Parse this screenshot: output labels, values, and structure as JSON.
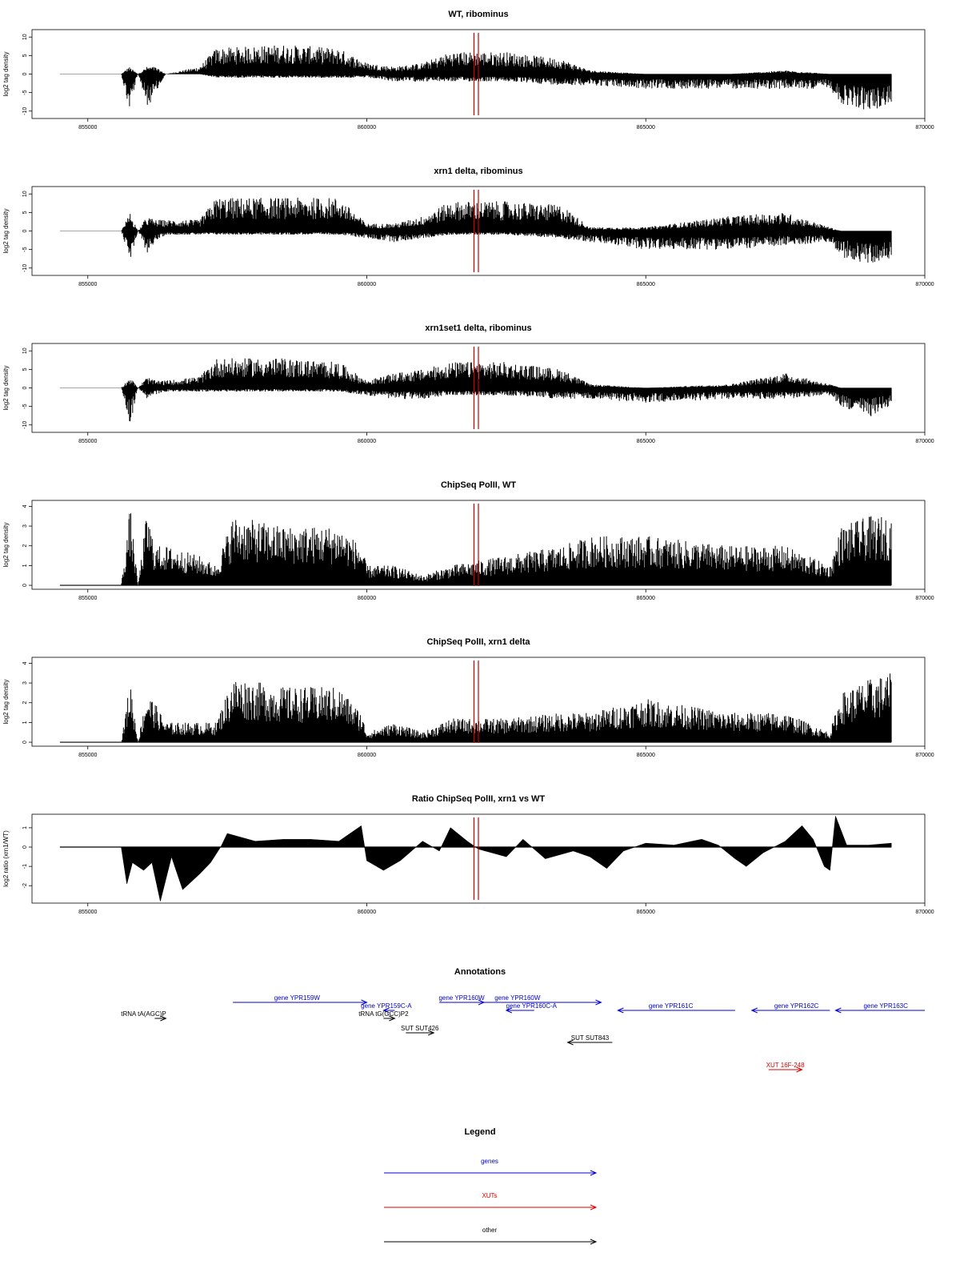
{
  "page": {
    "background": "#ffffff"
  },
  "colors": {
    "signal": "#000000",
    "marker": "#cc0000",
    "gene": "#0000cc",
    "xut": "#dd0000",
    "other": "#000000"
  },
  "x_ticks": [
    "855000",
    "860000",
    "865000",
    "870000"
  ],
  "marker_lines_x": [
    861920,
    862000
  ],
  "chart_data": [
    {
      "type": "bar",
      "title": "WT, ribominus",
      "ylabel": "log2 tag density",
      "xlim": [
        854000,
        870000
      ],
      "ylim": [
        -12,
        12
      ],
      "y_ticks": [
        "10",
        "5",
        "0",
        "-5",
        "-10"
      ],
      "y_tick_values": [
        10,
        5,
        0,
        -5,
        -10
      ],
      "baseline_grey": true,
      "profile": [
        [
          855000,
          0,
          0
        ],
        [
          855600,
          0,
          0
        ],
        [
          855740,
          2,
          -10
        ],
        [
          855900,
          0,
          0
        ],
        [
          856060,
          2,
          -9
        ],
        [
          856200,
          2,
          -6
        ],
        [
          856400,
          0,
          0
        ],
        [
          857000,
          2,
          0
        ],
        [
          857300,
          7,
          -1
        ],
        [
          858500,
          8,
          -1
        ],
        [
          859500,
          7,
          -1
        ],
        [
          860000,
          3,
          -1
        ],
        [
          860500,
          2,
          -2
        ],
        [
          861000,
          3,
          -2
        ],
        [
          861500,
          6,
          -2
        ],
        [
          862500,
          6,
          -2
        ],
        [
          863500,
          4,
          -3
        ],
        [
          864000,
          1,
          -3
        ],
        [
          865000,
          0,
          -4
        ],
        [
          866500,
          0,
          -4
        ],
        [
          867500,
          1,
          -4
        ],
        [
          868300,
          0,
          -4
        ],
        [
          868500,
          0,
          -8
        ],
        [
          869000,
          0,
          -10
        ],
        [
          869400,
          0,
          -8
        ]
      ]
    },
    {
      "type": "bar",
      "title": "xrn1 delta, ribominus",
      "ylabel": "log2 tag density",
      "xlim": [
        854000,
        870000
      ],
      "ylim": [
        -12,
        12
      ],
      "y_ticks": [
        "10",
        "5",
        "0",
        "-5",
        "-10"
      ],
      "y_tick_values": [
        10,
        5,
        0,
        -5,
        -10
      ],
      "baseline_grey": true,
      "profile": [
        [
          855000,
          0,
          0
        ],
        [
          855600,
          0,
          0
        ],
        [
          855760,
          5,
          -8
        ],
        [
          855900,
          0,
          0
        ],
        [
          856060,
          4,
          -6
        ],
        [
          856200,
          3,
          -3
        ],
        [
          856400,
          3,
          -1
        ],
        [
          857000,
          3,
          -1
        ],
        [
          857300,
          9,
          -1
        ],
        [
          858500,
          9,
          -1
        ],
        [
          859500,
          9,
          -1
        ],
        [
          860000,
          2,
          -2
        ],
        [
          860500,
          2,
          -3
        ],
        [
          861000,
          4,
          -2
        ],
        [
          861500,
          8,
          -1
        ],
        [
          862500,
          8,
          -1
        ],
        [
          863500,
          7,
          -2
        ],
        [
          864000,
          1,
          -3
        ],
        [
          865000,
          1,
          -5
        ],
        [
          866500,
          4,
          -5
        ],
        [
          867500,
          5,
          -4
        ],
        [
          868300,
          1,
          -3
        ],
        [
          868500,
          0,
          -7
        ],
        [
          869000,
          0,
          -9
        ],
        [
          869400,
          0,
          -8
        ]
      ]
    },
    {
      "type": "bar",
      "title": "xrn1set1 delta, ribominus",
      "ylabel": "log2 tag density",
      "xlim": [
        854000,
        870000
      ],
      "ylim": [
        -12,
        12
      ],
      "y_ticks": [
        "10",
        "5",
        "0",
        "-5",
        "-10"
      ],
      "y_tick_values": [
        10,
        5,
        0,
        -5,
        -10
      ],
      "baseline_grey": true,
      "profile": [
        [
          855000,
          0,
          0
        ],
        [
          855600,
          0,
          0
        ],
        [
          855760,
          3,
          -10
        ],
        [
          855900,
          0,
          0
        ],
        [
          856060,
          3,
          -3
        ],
        [
          856200,
          2,
          -2
        ],
        [
          856400,
          2,
          -1
        ],
        [
          857000,
          3,
          -1
        ],
        [
          857300,
          8,
          -1
        ],
        [
          858500,
          8,
          -1
        ],
        [
          859500,
          7,
          -1
        ],
        [
          860000,
          2,
          -2
        ],
        [
          860500,
          4,
          -3
        ],
        [
          861000,
          5,
          -3
        ],
        [
          861500,
          7,
          -2
        ],
        [
          862500,
          7,
          -2
        ],
        [
          863500,
          5,
          -3
        ],
        [
          864000,
          1,
          -3
        ],
        [
          865000,
          0,
          -4
        ],
        [
          866500,
          1,
          -3
        ],
        [
          867500,
          4,
          -3
        ],
        [
          868300,
          1,
          -2
        ],
        [
          868500,
          0,
          -5
        ],
        [
          869000,
          0,
          -8
        ],
        [
          869400,
          0,
          -5
        ]
      ]
    },
    {
      "type": "bar",
      "title": "ChipSeq PolII, WT",
      "ylabel": "log2 tag density",
      "xlim": [
        854000,
        870000
      ],
      "ylim": [
        -0.2,
        4.3
      ],
      "y_ticks": [
        "0",
        "1",
        "2",
        "3",
        "4"
      ],
      "y_tick_values": [
        0,
        1,
        2,
        3,
        4
      ],
      "baseline_grey": false,
      "profile": [
        [
          855000,
          0,
          0
        ],
        [
          855600,
          0,
          0
        ],
        [
          855760,
          4,
          0
        ],
        [
          855900,
          0,
          0
        ],
        [
          856060,
          3.8,
          0
        ],
        [
          856200,
          2,
          0
        ],
        [
          856400,
          2,
          0
        ],
        [
          857000,
          1.5,
          0
        ],
        [
          857300,
          1,
          0
        ],
        [
          857600,
          3.5,
          0
        ],
        [
          858500,
          3,
          0
        ],
        [
          859500,
          3,
          0
        ],
        [
          859900,
          2,
          0
        ],
        [
          860000,
          1,
          0
        ],
        [
          860500,
          1,
          0
        ],
        [
          861000,
          0.5,
          0
        ],
        [
          861500,
          1,
          0
        ],
        [
          862500,
          1.5,
          0
        ],
        [
          863500,
          2,
          0
        ],
        [
          864000,
          2.5,
          0
        ],
        [
          865000,
          2.5,
          0
        ],
        [
          866500,
          2,
          0
        ],
        [
          867500,
          2,
          0
        ],
        [
          868300,
          1,
          0
        ],
        [
          868500,
          3,
          0
        ],
        [
          869000,
          3.5,
          0
        ],
        [
          869400,
          3.5,
          0
        ]
      ]
    },
    {
      "type": "bar",
      "title": "ChipSeq PolII, xrn1 delta",
      "ylabel": "log2 tag density",
      "xlim": [
        854000,
        870000
      ],
      "ylim": [
        -0.2,
        4.3
      ],
      "y_ticks": [
        "0",
        "1",
        "2",
        "3",
        "4"
      ],
      "y_tick_values": [
        0,
        1,
        2,
        3,
        4
      ],
      "baseline_grey": false,
      "profile": [
        [
          855000,
          0,
          0
        ],
        [
          855600,
          0,
          0
        ],
        [
          855760,
          3.2,
          0
        ],
        [
          855900,
          0,
          0
        ],
        [
          856060,
          2.6,
          0
        ],
        [
          856200,
          2,
          0
        ],
        [
          856400,
          1,
          0
        ],
        [
          857000,
          1,
          0
        ],
        [
          857300,
          1,
          0
        ],
        [
          857600,
          3.3,
          0
        ],
        [
          858500,
          2.8,
          0
        ],
        [
          859500,
          2.8,
          0
        ],
        [
          859900,
          1.5,
          0
        ],
        [
          860000,
          0.5,
          0
        ],
        [
          860500,
          1,
          0
        ],
        [
          861000,
          0.5,
          0
        ],
        [
          861500,
          1.2,
          0
        ],
        [
          862500,
          1.2,
          0
        ],
        [
          863500,
          1.5,
          0
        ],
        [
          864000,
          1.5,
          0
        ],
        [
          865000,
          2.2,
          0
        ],
        [
          866500,
          1.5,
          0
        ],
        [
          867500,
          1.5,
          0
        ],
        [
          868300,
          0.5,
          0
        ],
        [
          868500,
          2.5,
          0
        ],
        [
          869000,
          3.2,
          0
        ],
        [
          869400,
          3.5,
          0
        ]
      ]
    },
    {
      "type": "area",
      "title": "Ratio ChipSeq PolII, xrn1 vs WT",
      "ylabel": "log2 ratio (xrn1/WT)",
      "xlim": [
        854000,
        870000
      ],
      "ylim": [
        -2.9,
        1.7
      ],
      "y_ticks": [
        "1",
        "0",
        "-1",
        "-2"
      ],
      "y_tick_values": [
        1,
        0,
        -1,
        -2
      ],
      "baseline_grey": false,
      "points": [
        [
          854500,
          0
        ],
        [
          855600,
          0
        ],
        [
          855700,
          -1.9
        ],
        [
          855800,
          -0.8
        ],
        [
          856000,
          -1.2
        ],
        [
          856150,
          -0.8
        ],
        [
          856300,
          -2.8
        ],
        [
          856500,
          -0.5
        ],
        [
          856700,
          -2.2
        ],
        [
          857000,
          -1.4
        ],
        [
          857200,
          -0.8
        ],
        [
          857400,
          0.1
        ],
        [
          857500,
          0.7
        ],
        [
          858000,
          0.3
        ],
        [
          858500,
          0.4
        ],
        [
          859000,
          0.4
        ],
        [
          859500,
          0.3
        ],
        [
          859900,
          1.1
        ],
        [
          860000,
          -0.7
        ],
        [
          860300,
          -1.2
        ],
        [
          860600,
          -0.7
        ],
        [
          861000,
          0.3
        ],
        [
          861300,
          -0.2
        ],
        [
          861500,
          1.0
        ],
        [
          861800,
          0.3
        ],
        [
          862000,
          -0.1
        ],
        [
          862500,
          -0.5
        ],
        [
          862800,
          0.4
        ],
        [
          863200,
          -0.6
        ],
        [
          863700,
          -0.2
        ],
        [
          864000,
          -0.5
        ],
        [
          864300,
          -1.1
        ],
        [
          864600,
          -0.2
        ],
        [
          865000,
          0.2
        ],
        [
          865500,
          0.1
        ],
        [
          866000,
          0.4
        ],
        [
          866300,
          0.1
        ],
        [
          866600,
          -0.6
        ],
        [
          866800,
          -1.0
        ],
        [
          867100,
          -0.3
        ],
        [
          867500,
          0.3
        ],
        [
          867800,
          1.1
        ],
        [
          868000,
          0.4
        ],
        [
          868200,
          -1.0
        ],
        [
          868300,
          -1.2
        ],
        [
          868400,
          1.6
        ],
        [
          868600,
          0.1
        ],
        [
          869000,
          0.1
        ],
        [
          869400,
          0.2
        ]
      ]
    }
  ],
  "annotations": {
    "title": "Annotations",
    "items": [
      {
        "label": "gene YPR159W",
        "type": "gene",
        "x1": 857600,
        "x2": 860000,
        "row": 0,
        "label_x": 858750
      },
      {
        "label": "gene YPR159C-A",
        "type": "gene",
        "x1": 860500,
        "x2": 860300,
        "row": 1,
        "label_x": 860350
      },
      {
        "label": "gene YPR160W",
        "type": "gene",
        "x1": 861300,
        "x2": 862100,
        "row": 0,
        "label_x": 861700
      },
      {
        "label": "gene YPR160W",
        "type": "gene",
        "x1": 862100,
        "x2": 864200,
        "row": 0,
        "label_x": 862700
      },
      {
        "label": "gene YPR160C-A",
        "type": "gene",
        "x1": 863000,
        "x2": 862500,
        "row": 1,
        "label_x": 862950
      },
      {
        "label": "gene YPR161C",
        "type": "gene",
        "x1": 866600,
        "x2": 864500,
        "row": 1,
        "label_x": 865450
      },
      {
        "label": "gene YPR162C",
        "type": "gene",
        "x1": 868300,
        "x2": 866900,
        "row": 1,
        "label_x": 867700
      },
      {
        "label": "gene YPR163C",
        "type": "gene",
        "x1": 870000,
        "x2": 868400,
        "row": 1,
        "label_x": 869300
      },
      {
        "label": "tRNA tA(AGC)P",
        "type": "other",
        "x1": 856200,
        "x2": 856400,
        "row": 2,
        "label_x": 856000
      },
      {
        "label": "tRNA tG(GCC)P2",
        "type": "other",
        "x1": 860300,
        "x2": 860500,
        "row": 2,
        "label_x": 860300
      },
      {
        "label": "SUT SUT426",
        "type": "other",
        "x1": 860700,
        "x2": 861200,
        "row": 3,
        "label_x": 860950
      },
      {
        "label": "SUT SUT843",
        "type": "other",
        "x1": 864400,
        "x2": 863600,
        "row": 4,
        "label_x": 864000
      },
      {
        "label": "XUT 16F-248",
        "type": "xut",
        "x1": 867200,
        "x2": 867800,
        "row": 5,
        "label_x": 867500
      }
    ]
  },
  "legend": {
    "title": "Legend",
    "items": [
      {
        "label": "genes",
        "type": "gene"
      },
      {
        "label": "XUTs",
        "type": "xut"
      },
      {
        "label": "other",
        "type": "other"
      }
    ]
  }
}
